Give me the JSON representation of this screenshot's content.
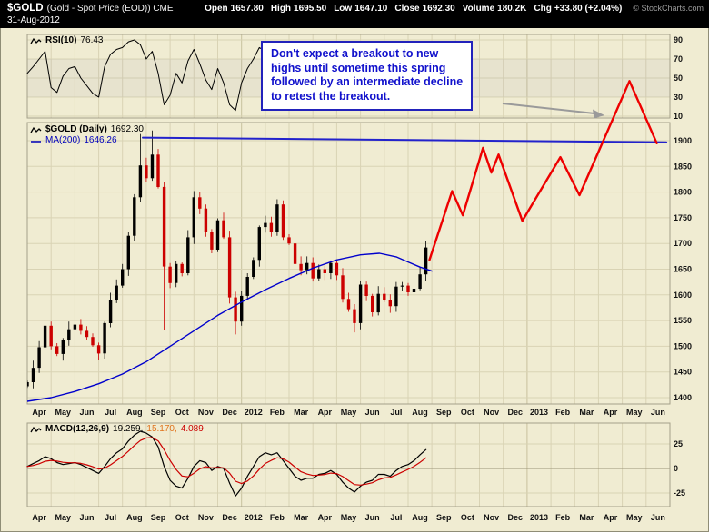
{
  "header": {
    "symbol": "$GOLD",
    "name": "(Gold - Spot Price (EOD)) CME",
    "date": "31-Aug-2012",
    "quote": {
      "open_label": "Open",
      "open": "1657.80",
      "high_label": "High",
      "high": "1695.50",
      "low_label": "Low",
      "low": "1647.10",
      "close_label": "Close",
      "close": "1692.30",
      "volume_label": "Volume",
      "volume": "180.2K",
      "chg_label": "Chg",
      "chg": "+33.80 (+2.04%)"
    },
    "credit": "© StockCharts.com"
  },
  "annotation": {
    "text": "Don't expect a breakout to new highs until sometime this spring followed by an intermediate decline to retest the breakout.",
    "lines": [
      "Don't expect a breakout to new",
      "highs until sometime this spring",
      "followed by an intermediate decline",
      "to retest the breakout."
    ]
  },
  "rsi_panel": {
    "label": "RSI(10)",
    "value": "76.43"
  },
  "price_panel": {
    "label": "$GOLD (Daily)",
    "value": "1692.30",
    "ma_label": "MA(200)",
    "ma_value": "1646.26"
  },
  "macd_panel": {
    "label": "MACD(12,26,9)",
    "value1": "19.259,",
    "value2": "15.170,",
    "value3": "4.089"
  },
  "colors": {
    "background": "#F0ECD2",
    "grid": "#D9D3B4",
    "grid_year": "#C7C19E",
    "panel_border": "#A4A08A",
    "candle_up": "#000000",
    "candle_down": "#CC0000",
    "ma": "#0000CC",
    "resistance": "#2222CC",
    "projection": "#EE0000",
    "rsi_line": "#000000",
    "macd_line": "#000000",
    "macd_signal": "#CC0000",
    "annotation_text": "#1111CC",
    "annotation_border": "#2222BB",
    "arrow": "#9A9A9A"
  },
  "chart_data": [
    {
      "type": "line",
      "panel": "rsi",
      "title": "RSI(10)",
      "last_value": 76.43,
      "x_unit": "months from Apr 2011",
      "x_step": 0.25,
      "ylim": [
        8,
        96
      ],
      "yticks": [
        90,
        70,
        50,
        30,
        10
      ],
      "overbought": 70,
      "oversold": 30,
      "values": [
        55,
        62,
        70,
        78,
        40,
        35,
        52,
        60,
        62,
        50,
        42,
        34,
        30,
        62,
        75,
        80,
        82,
        88,
        90,
        85,
        70,
        78,
        55,
        22,
        32,
        55,
        45,
        68,
        80,
        65,
        48,
        38,
        60,
        45,
        22,
        16,
        45,
        60,
        70,
        82,
        78,
        65,
        80,
        45,
        35,
        28,
        32,
        45,
        35,
        48,
        40,
        55,
        38,
        25,
        22,
        18,
        60,
        45,
        30,
        55,
        45,
        38,
        62,
        60,
        48,
        55,
        70,
        76.43
      ]
    },
    {
      "type": "candlestick",
      "panel": "price",
      "title": "$GOLD (Daily)",
      "subtitle": "MA(200) 1646.26",
      "x_unit": "months from Apr 2011 (weekly-sampled closes)",
      "x_step": 0.25,
      "ylim": [
        1387,
        1935
      ],
      "yticks": [
        1900,
        1850,
        1800,
        1750,
        1700,
        1650,
        1600,
        1550,
        1500,
        1450,
        1400
      ],
      "x_months": [
        "Apr",
        "May",
        "Jun",
        "Jul",
        "Aug",
        "Sep",
        "Oct",
        "Nov",
        "Dec",
        "2012",
        "Feb",
        "Mar",
        "Apr",
        "May",
        "Jun",
        "Jul",
        "Aug",
        "Sep",
        "Oct",
        "Nov",
        "Dec",
        "2013",
        "Feb",
        "Mar",
        "Apr",
        "May",
        "Jun"
      ],
      "closes": [
        1430,
        1458,
        1498,
        1540,
        1500,
        1485,
        1512,
        1533,
        1542,
        1530,
        1518,
        1502,
        1486,
        1545,
        1590,
        1618,
        1650,
        1715,
        1790,
        1852,
        1827,
        1873,
        1810,
        1655,
        1623,
        1660,
        1642,
        1712,
        1790,
        1768,
        1722,
        1688,
        1745,
        1712,
        1595,
        1548,
        1598,
        1635,
        1668,
        1732,
        1740,
        1722,
        1776,
        1712,
        1700,
        1660,
        1648,
        1662,
        1632,
        1650,
        1642,
        1662,
        1638,
        1592,
        1572,
        1545,
        1620,
        1598,
        1566,
        1602,
        1590,
        1578,
        1616,
        1618,
        1605,
        1612,
        1640,
        1692.3
      ],
      "extremes": {
        "19": {
          "high": 1913
        },
        "21": {
          "high": 1920
        },
        "23": {
          "low": 1532
        },
        "35": {
          "low": 1523
        },
        "55": {
          "low": 1527
        }
      },
      "series": [
        {
          "name": "MA(200)",
          "type": "line",
          "last_value": 1646.26,
          "points": [
            [
              0,
              1393
            ],
            [
              1,
              1400
            ],
            [
              2,
              1412
            ],
            [
              3,
              1427
            ],
            [
              4,
              1446
            ],
            [
              5,
              1470
            ],
            [
              6,
              1500
            ],
            [
              7,
              1530
            ],
            [
              8,
              1560
            ],
            [
              9,
              1586
            ],
            [
              10,
              1610
            ],
            [
              11,
              1632
            ],
            [
              12,
              1652
            ],
            [
              13,
              1668
            ],
            [
              14,
              1678
            ],
            [
              14.8,
              1681
            ],
            [
              15.5,
              1674
            ],
            [
              16,
              1664
            ],
            [
              16.5,
              1654
            ],
            [
              17,
              1646.26
            ]
          ]
        },
        {
          "name": "resistance-trendline",
          "type": "line",
          "points": [
            [
              4.85,
              1906
            ],
            [
              26.85,
              1897
            ]
          ]
        },
        {
          "name": "forecast-projection",
          "type": "line",
          "points": [
            [
              16.9,
              1668
            ],
            [
              17.85,
              1802
            ],
            [
              18.3,
              1755
            ],
            [
              19.15,
              1886
            ],
            [
              19.5,
              1838
            ],
            [
              19.8,
              1873
            ],
            [
              20.8,
              1744
            ],
            [
              22.4,
              1868
            ],
            [
              23.2,
              1794
            ],
            [
              25.3,
              2016
            ],
            [
              26.45,
              1895
            ]
          ]
        }
      ]
    },
    {
      "type": "line",
      "panel": "macd",
      "title": "MACD(12,26,9)",
      "last_values": [
        19.259,
        15.17,
        4.089
      ],
      "x_step": 0.25,
      "yticks": [
        25,
        0,
        -25
      ],
      "values": [
        2,
        5,
        8,
        12,
        10,
        6,
        4,
        5,
        6,
        4,
        1,
        -2,
        -5,
        2,
        10,
        16,
        20,
        28,
        34,
        38,
        36,
        32,
        22,
        2,
        -12,
        -18,
        -20,
        -10,
        2,
        8,
        6,
        -2,
        2,
        0,
        -15,
        -28,
        -20,
        -8,
        2,
        12,
        16,
        14,
        16,
        8,
        0,
        -8,
        -12,
        -10,
        -10,
        -6,
        -5,
        -2,
        -6,
        -14,
        -20,
        -24,
        -18,
        -14,
        -12,
        -6,
        -6,
        -8,
        -2,
        2,
        4,
        8,
        14,
        19.259
      ]
    }
  ]
}
